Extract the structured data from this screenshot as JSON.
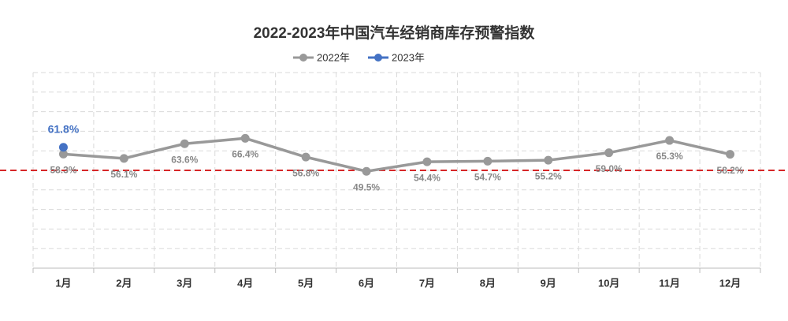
{
  "chart_data": {
    "type": "line",
    "title": "2022-2023年中国汽车经销商库存预警指数",
    "categories": [
      "1月",
      "2月",
      "3月",
      "4月",
      "5月",
      "6月",
      "7月",
      "8月",
      "9月",
      "10月",
      "11月",
      "12月"
    ],
    "series": [
      {
        "name": "2022年",
        "color": "#999999",
        "values": [
          58.3,
          56.1,
          63.6,
          66.4,
          56.8,
          49.5,
          54.4,
          54.7,
          55.2,
          59.0,
          65.3,
          58.2
        ],
        "value_labels": [
          "58.3%",
          "56.1%",
          "63.6%",
          "66.4%",
          "56.8%",
          "49.5%",
          "54.4%",
          "54.7%",
          "55.2%",
          "59.0%",
          "65.3%",
          "58.2%"
        ]
      },
      {
        "name": "2023年",
        "color": "#4472c4",
        "values": [
          61.8,
          null,
          null,
          null,
          null,
          null,
          null,
          null,
          null,
          null,
          null,
          null
        ],
        "value_labels": [
          "61.8%",
          null,
          null,
          null,
          null,
          null,
          null,
          null,
          null,
          null,
          null,
          null
        ]
      }
    ],
    "ylim": [
      0,
      100
    ],
    "yticks": [
      0,
      10,
      20,
      30,
      40,
      50,
      60,
      70,
      80,
      90,
      100
    ],
    "grid": true,
    "reference_line": {
      "value": 50,
      "color": "#d62728"
    }
  }
}
